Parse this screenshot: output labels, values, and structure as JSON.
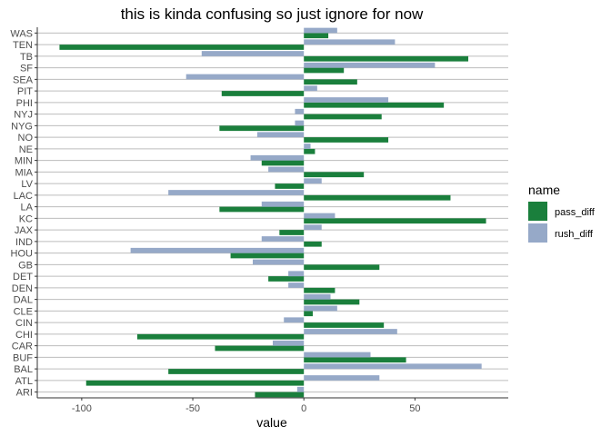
{
  "chart_data": {
    "type": "bar",
    "orientation": "horizontal",
    "title": "this is kinda confusing so just ignore for now",
    "xlabel": "value",
    "ylabel": "",
    "xlim": [
      -120,
      92
    ],
    "xticks": [
      -100,
      -50,
      0,
      50
    ],
    "grid": "horizontal lines at each category",
    "legend": {
      "title": "name",
      "placement": "right"
    },
    "categories": [
      "ARI",
      "ATL",
      "BAL",
      "BUF",
      "CAR",
      "CHI",
      "CIN",
      "CLE",
      "DAL",
      "DEN",
      "DET",
      "GB",
      "HOU",
      "IND",
      "JAX",
      "KC",
      "LA",
      "LAC",
      "LV",
      "MIA",
      "MIN",
      "NE",
      "NO",
      "NYG",
      "NYJ",
      "PHI",
      "PIT",
      "SEA",
      "SF",
      "TB",
      "TEN",
      "WAS"
    ],
    "series": [
      {
        "name": "pass_diff",
        "color": "#1a7f3c",
        "values": [
          -22,
          -98,
          -61,
          46,
          -40,
          -75,
          36,
          4,
          25,
          14,
          -16,
          34,
          -33,
          8,
          -11,
          82,
          -38,
          66,
          -13,
          27,
          -19,
          5,
          38,
          -38,
          35,
          63,
          -37,
          24,
          18,
          74,
          -110,
          11
        ]
      },
      {
        "name": "rush_diff",
        "color": "#96a9c8",
        "values": [
          -3,
          34,
          80,
          30,
          -14,
          42,
          -9,
          15,
          12,
          -7,
          -7,
          -23,
          -78,
          -19,
          8,
          14,
          -19,
          -61,
          8,
          -16,
          -24,
          3,
          -21,
          -4,
          -4,
          38,
          6,
          -53,
          59,
          -46,
          41,
          15
        ]
      }
    ]
  }
}
